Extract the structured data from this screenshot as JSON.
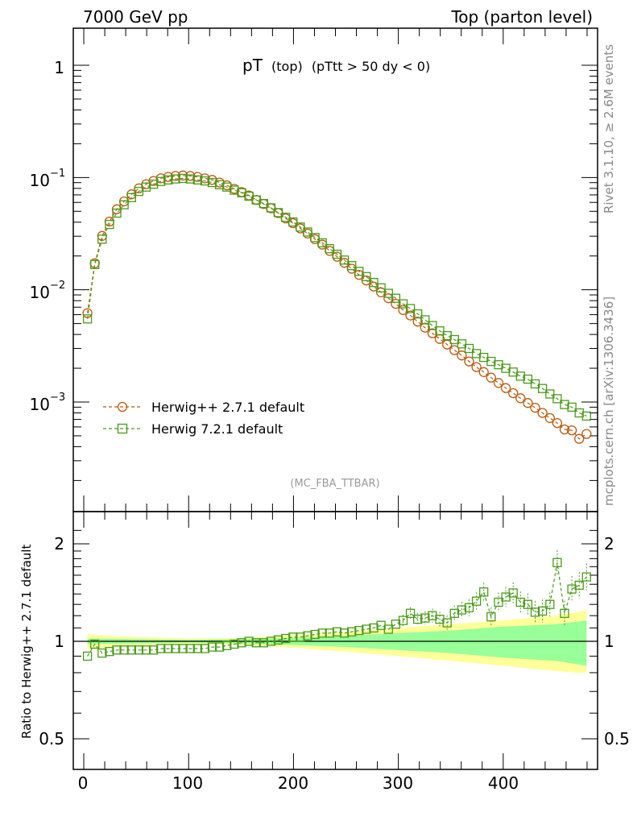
{
  "header": {
    "left": "7000 GeV pp",
    "right": "Top (parton level)"
  },
  "plot_title": {
    "main": "pT",
    "sub1": "(top)",
    "sub2": "(pTtt > 50 dy < 0)"
  },
  "side_labels": {
    "rivet": "Rivet 3.1.10, ≥ 2.6M events",
    "mcplots": "mcplots.cern.ch [arXiv:1306.3436]"
  },
  "analysis_label": "(MC_FBA_TTBAR)",
  "legend": [
    {
      "label": "Herwig++ 2.7.1 default",
      "color": "#b85a10",
      "marker": "circle"
    },
    {
      "label": "Herwig 7.2.1 default",
      "color": "#4a9a1a",
      "marker": "square"
    }
  ],
  "ratio_ylabel": "Ratio to Herwig++ 2.7.1 default",
  "ticks": {
    "main_y": [
      {
        "base": "1",
        "exp": ""
      },
      {
        "base": "10",
        "exp": "−1"
      },
      {
        "base": "10",
        "exp": "−2"
      },
      {
        "base": "10",
        "exp": "−3"
      }
    ],
    "ratio_y_left": [
      "2",
      "1",
      "0.5"
    ],
    "ratio_y_right": [
      "2",
      "1",
      "0.5"
    ],
    "x": [
      "0",
      "100",
      "200",
      "300",
      "400"
    ]
  },
  "colors": {
    "herwigpp": "#b85a10",
    "herwig7": "#4a9a1a",
    "band_outer": "#ffff99",
    "band_inner": "#99ff99"
  },
  "chart_data": [
    {
      "type": "line",
      "panel": "main",
      "yscale": "log",
      "xlim": [
        -10,
        490
      ],
      "ylim": [
        0.00015,
        2.1
      ],
      "x": [
        3.5,
        10.5,
        17.5,
        24.5,
        31.5,
        38.5,
        45.5,
        52.5,
        59.5,
        66.5,
        73.5,
        80.5,
        87.5,
        94.5,
        101.5,
        108.5,
        115.5,
        122.5,
        129.5,
        136.5,
        143.5,
        150.5,
        157.5,
        164.5,
        171.5,
        178.5,
        185.5,
        192.5,
        199.5,
        206.5,
        213.5,
        220.5,
        227.5,
        234.5,
        241.5,
        248.5,
        255.5,
        262.5,
        269.5,
        276.5,
        283.5,
        290.5,
        297.5,
        304.5,
        311.5,
        318.5,
        325.5,
        332.5,
        339.5,
        346.5,
        353.5,
        360.5,
        367.5,
        374.5,
        381.5,
        388.5,
        395.5,
        402.5,
        409.5,
        416.5,
        423.5,
        430.5,
        437.5,
        444.5,
        451.5,
        458.5,
        465.5,
        472.5,
        479.5
      ],
      "series": [
        {
          "name": "Herwig++ 2.7.1 default",
          "values": [
            0.0062,
            0.0172,
            0.0302,
            0.0405,
            0.0522,
            0.0612,
            0.0708,
            0.0801,
            0.0872,
            0.0932,
            0.0982,
            0.1012,
            0.1032,
            0.1042,
            0.1032,
            0.1012,
            0.0982,
            0.0952,
            0.0902,
            0.0852,
            0.0792,
            0.0742,
            0.0692,
            0.0632,
            0.0582,
            0.0532,
            0.0482,
            0.0432,
            0.0392,
            0.0352,
            0.0317,
            0.0282,
            0.0252,
            0.0222,
            0.0197,
            0.0174,
            0.0154,
            0.0136,
            0.0121,
            0.0107,
            0.0095,
            0.0084,
            0.0075,
            0.0066,
            0.0059,
            0.0052,
            0.0046,
            0.0041,
            0.00365,
            0.00325,
            0.0029,
            0.0026,
            0.0023,
            0.00205,
            0.00185,
            0.00165,
            0.00148,
            0.00133,
            0.0012,
            0.00108,
            0.00098,
            0.00089,
            0.0008,
            0.00072,
            0.00065,
            0.00057,
            0.00056,
            0.00047,
            0.00052
          ]
        },
        {
          "name": "Herwig 7.2.1 default",
          "values": [
            0.0055,
            0.0168,
            0.0282,
            0.0382,
            0.0482,
            0.0572,
            0.0662,
            0.0752,
            0.0822,
            0.0872,
            0.0922,
            0.0952,
            0.0972,
            0.0982,
            0.0972,
            0.0952,
            0.0932,
            0.0902,
            0.0862,
            0.0822,
            0.0772,
            0.0732,
            0.0682,
            0.0632,
            0.0587,
            0.0537,
            0.0487,
            0.0442,
            0.0402,
            0.0362,
            0.0327,
            0.0292,
            0.0262,
            0.0232,
            0.0207,
            0.0184,
            0.0164,
            0.0146,
            0.0131,
            0.0116,
            0.0104,
            0.0093,
            0.0084,
            0.0075,
            0.0068,
            0.0061,
            0.0054,
            0.0048,
            0.0043,
            0.0039,
            0.0036,
            0.0033,
            0.003,
            0.0027,
            0.0025,
            0.0023,
            0.00215,
            0.002,
            0.00185,
            0.0017,
            0.0016,
            0.00145,
            0.00132,
            0.00118,
            0.00107,
            0.00095,
            0.0009,
            0.0008,
            0.00075
          ]
        }
      ]
    },
    {
      "type": "line",
      "panel": "ratio",
      "ylim": [
        0.38,
        2.4
      ],
      "ylabel": "Ratio to Herwig++ 2.7.1 default",
      "x": [
        3.5,
        10.5,
        17.5,
        24.5,
        31.5,
        38.5,
        45.5,
        52.5,
        59.5,
        66.5,
        73.5,
        80.5,
        87.5,
        94.5,
        101.5,
        108.5,
        115.5,
        122.5,
        129.5,
        136.5,
        143.5,
        150.5,
        157.5,
        164.5,
        171.5,
        178.5,
        185.5,
        192.5,
        199.5,
        206.5,
        213.5,
        220.5,
        227.5,
        234.5,
        241.5,
        248.5,
        255.5,
        262.5,
        269.5,
        276.5,
        283.5,
        290.5,
        297.5,
        304.5,
        311.5,
        318.5,
        325.5,
        332.5,
        339.5,
        346.5,
        353.5,
        360.5,
        367.5,
        374.5,
        381.5,
        388.5,
        395.5,
        402.5,
        409.5,
        416.5,
        423.5,
        430.5,
        437.5,
        444.5,
        451.5,
        458.5,
        465.5,
        472.5,
        479.5
      ],
      "series": [
        {
          "name": "Herwig 7.2.1 default",
          "values": [
            0.9,
            0.98,
            0.92,
            0.93,
            0.94,
            0.94,
            0.94,
            0.94,
            0.94,
            0.94,
            0.95,
            0.95,
            0.95,
            0.95,
            0.95,
            0.95,
            0.95,
            0.96,
            0.96,
            0.97,
            0.98,
            0.99,
            1.0,
            0.99,
            0.99,
            1.0,
            1.01,
            1.02,
            1.03,
            1.03,
            1.04,
            1.05,
            1.06,
            1.06,
            1.07,
            1.06,
            1.07,
            1.08,
            1.09,
            1.1,
            1.12,
            1.09,
            1.13,
            1.16,
            1.22,
            1.17,
            1.18,
            1.2,
            1.17,
            1.14,
            1.22,
            1.25,
            1.27,
            1.33,
            1.42,
            1.19,
            1.32,
            1.37,
            1.41,
            1.32,
            1.3,
            1.23,
            1.24,
            1.3,
            1.75,
            1.22,
            1.45,
            1.49,
            1.58
          ]
        }
      ],
      "uncertainty_band_inner": {
        "x": [
          3.5,
          50,
          100,
          150,
          200,
          250,
          300,
          350,
          400,
          450,
          470,
          479.5
        ],
        "lower": [
          0.98,
          0.985,
          0.99,
          0.985,
          0.975,
          0.96,
          0.94,
          0.92,
          0.89,
          0.87,
          0.85,
          0.84
        ],
        "upper": [
          1.02,
          1.015,
          1.01,
          1.015,
          1.025,
          1.04,
          1.06,
          1.08,
          1.11,
          1.13,
          1.15,
          1.16
        ]
      },
      "uncertainty_band_outer": {
        "x": [
          3.5,
          50,
          100,
          150,
          200,
          250,
          300,
          350,
          400,
          450,
          470,
          479.5
        ],
        "lower": [
          0.95,
          0.97,
          0.98,
          0.975,
          0.955,
          0.93,
          0.9,
          0.87,
          0.84,
          0.81,
          0.8,
          0.8
        ],
        "upper": [
          1.05,
          1.03,
          1.02,
          1.025,
          1.045,
          1.07,
          1.1,
          1.13,
          1.16,
          1.2,
          1.23,
          1.25
        ]
      }
    }
  ]
}
